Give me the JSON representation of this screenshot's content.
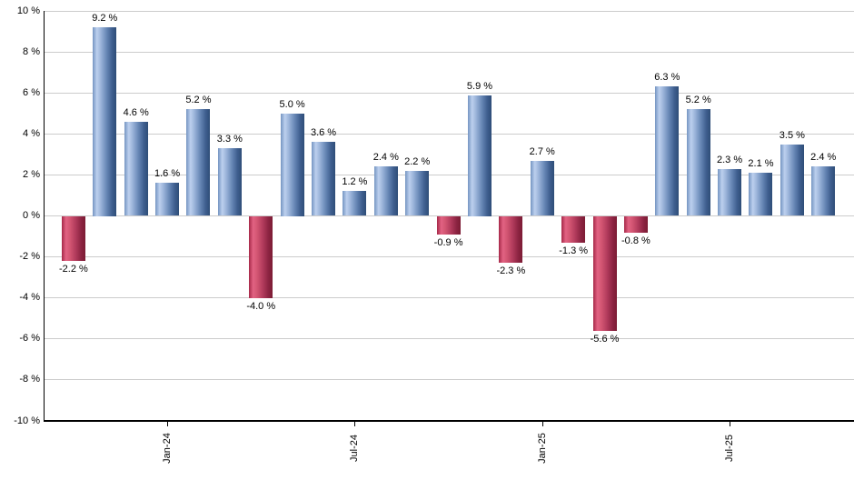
{
  "chart_data": {
    "type": "bar",
    "title": "",
    "unit": "%",
    "values": [
      -2.2,
      9.2,
      4.6,
      1.6,
      5.2,
      3.3,
      -4.0,
      5.0,
      3.6,
      1.2,
      2.4,
      2.2,
      -0.9,
      5.9,
      -2.3,
      2.7,
      -1.3,
      -5.6,
      -0.8,
      6.3,
      5.2,
      2.3,
      2.1,
      3.5,
      2.4
    ],
    "bar_labels": [
      "-2.2 %",
      "9.2 %",
      "4.6 %",
      "1.6 %",
      "5.2 %",
      "3.3 %",
      "-4.0 %",
      "5.0 %",
      "3.6 %",
      "1.2 %",
      "2.4 %",
      "2.2 %",
      "-0.9 %",
      "5.9 %",
      "-2.3 %",
      "2.7 %",
      "-1.3 %",
      "-5.6 %",
      "-0.8 %",
      "6.3 %",
      "5.2 %",
      "2.3 %",
      "2.1 %",
      "3.5 %",
      "2.4 %"
    ],
    "x_tick_labels": [
      {
        "label": "Jan-24",
        "bar_index": 3
      },
      {
        "label": "Jul-24",
        "bar_index": 9
      },
      {
        "label": "Jan-25",
        "bar_index": 15
      },
      {
        "label": "Jul-25",
        "bar_index": 21
      }
    ],
    "y_axis": {
      "min": -10,
      "max": 10,
      "tick_step": 2,
      "tick_labels": [
        "10 %",
        "8 %",
        "6 %",
        "4 %",
        "2 %",
        "0 %",
        "-2 %",
        "-4 %",
        "-6 %",
        "-8 %",
        "-10 %"
      ]
    },
    "colors": {
      "positive_bar": "#6f92c5",
      "positive_bar_highlight": "#bdd0ee",
      "positive_bar_dark": "#2e4d77",
      "negative_bar": "#c94364",
      "negative_bar_highlight": "#e26383",
      "negative_bar_dark": "#7b1c34",
      "gridline": "#cccccc",
      "axis": "#000000",
      "label_text": "#000000"
    },
    "legend": null,
    "grid": true
  }
}
